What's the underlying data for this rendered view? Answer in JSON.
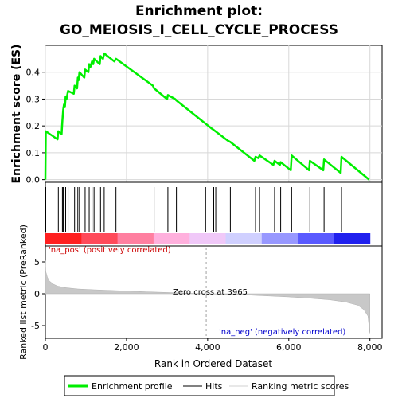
{
  "title_lines": [
    "Enrichment plot:",
    "GO_MEIOSIS_I_CELL_CYCLE_PROCESS"
  ],
  "chart_data": [
    {
      "type": "line",
      "panel": "enrichment",
      "ylabel": "Enrichment score (ES)",
      "ylim": [
        -0.01,
        0.5
      ],
      "xlim": [
        0,
        8300
      ],
      "y_ticks": [
        0.0,
        0.1,
        0.2,
        0.3,
        0.4
      ],
      "y_tick_labels": [
        "0.0",
        "0.1",
        "0.2",
        "0.3",
        "0.4"
      ],
      "grid": true,
      "series": [
        {
          "name": "Enrichment profile",
          "color": "#00ee00",
          "points": [
            [
              0,
              0
            ],
            [
              10,
              0.18
            ],
            [
              300,
              0.15
            ],
            [
              320,
              0.18
            ],
            [
              400,
              0.17
            ],
            [
              420,
              0.22
            ],
            [
              440,
              0.26
            ],
            [
              460,
              0.28
            ],
            [
              480,
              0.27
            ],
            [
              500,
              0.31
            ],
            [
              520,
              0.3
            ],
            [
              560,
              0.33
            ],
            [
              700,
              0.32
            ],
            [
              720,
              0.35
            ],
            [
              780,
              0.34
            ],
            [
              800,
              0.38
            ],
            [
              820,
              0.37
            ],
            [
              840,
              0.4
            ],
            [
              960,
              0.38
            ],
            [
              980,
              0.41
            ],
            [
              1060,
              0.4
            ],
            [
              1080,
              0.43
            ],
            [
              1110,
              0.42
            ],
            [
              1150,
              0.44
            ],
            [
              1180,
              0.43
            ],
            [
              1200,
              0.45
            ],
            [
              1340,
              0.43
            ],
            [
              1360,
              0.46
            ],
            [
              1420,
              0.45
            ],
            [
              1450,
              0.47
            ],
            [
              1700,
              0.44
            ],
            [
              1740,
              0.45
            ],
            [
              2650,
              0.35
            ],
            [
              2680,
              0.34
            ],
            [
              3000,
              0.3
            ],
            [
              3020,
              0.315
            ],
            [
              3200,
              0.3
            ],
            [
              3230,
              0.295
            ],
            [
              4100,
              0.19
            ],
            [
              4150,
              0.185
            ],
            [
              4500,
              0.145
            ],
            [
              4560,
              0.14
            ],
            [
              5150,
              0.07
            ],
            [
              5180,
              0.085
            ],
            [
              5250,
              0.08
            ],
            [
              5280,
              0.09
            ],
            [
              5620,
              0.055
            ],
            [
              5650,
              0.07
            ],
            [
              5780,
              0.055
            ],
            [
              5800,
              0.065
            ],
            [
              6050,
              0.035
            ],
            [
              6070,
              0.09
            ],
            [
              6500,
              0.035
            ],
            [
              6520,
              0.07
            ],
            [
              6850,
              0.035
            ],
            [
              6870,
              0.075
            ],
            [
              7280,
              0.025
            ],
            [
              7300,
              0.085
            ],
            [
              7980,
              0.0
            ]
          ]
        }
      ]
    },
    {
      "type": "hits",
      "panel": "hits",
      "series": [
        {
          "name": "Hits",
          "color": "#000000",
          "x": [
            10,
            320,
            420,
            440,
            460,
            500,
            560,
            720,
            800,
            840,
            980,
            1080,
            1150,
            1200,
            1360,
            1450,
            1740,
            2680,
            3020,
            3230,
            3950,
            4150,
            4200,
            4560,
            5180,
            5280,
            5650,
            5800,
            6070,
            6520,
            6870,
            7300
          ]
        }
      ]
    },
    {
      "type": "heatmap",
      "panel": "ranking-colorbar",
      "label_positive": "'na_pos' (positively correlated)",
      "label_negative": "'na_neg' (negatively correlated)",
      "colors": [
        "#ff2020",
        "#ff4a5a",
        "#ff7fa0",
        "#ffb0dd",
        "#f0c8f8",
        "#d0d0ff",
        "#9898ff",
        "#5a5aff",
        "#2020ee"
      ]
    },
    {
      "type": "area",
      "panel": "ranking-metric",
      "xlabel": "Rank in Ordered Dataset",
      "ylabel": "Ranked list metric (PreRanked)",
      "ylim": [
        -7,
        7.5
      ],
      "y_ticks": [
        -5,
        0,
        5
      ],
      "y_tick_labels": [
        "-5",
        "0",
        "5"
      ],
      "x_ticks": [
        0,
        2000,
        4000,
        6000,
        8000
      ],
      "x_tick_labels": [
        "0",
        "2,000",
        "4,000",
        "6,000",
        "8,000"
      ],
      "zero_cross": 3965,
      "zero_cross_label": "Zero cross at 3965",
      "series": [
        {
          "name": "Ranking metric scores",
          "color": "#c8c8c8",
          "points": [
            [
              0,
              5.2
            ],
            [
              10,
              3.5
            ],
            [
              50,
              2.6
            ],
            [
              100,
              2.0
            ],
            [
              200,
              1.5
            ],
            [
              300,
              1.2
            ],
            [
              500,
              0.95
            ],
            [
              800,
              0.75
            ],
            [
              1200,
              0.62
            ],
            [
              1600,
              0.52
            ],
            [
              2000,
              0.42
            ],
            [
              2500,
              0.3
            ],
            [
              3000,
              0.2
            ],
            [
              3500,
              0.08
            ],
            [
              3965,
              0
            ],
            [
              4500,
              -0.1
            ],
            [
              5000,
              -0.2
            ],
            [
              5500,
              -0.35
            ],
            [
              6000,
              -0.5
            ],
            [
              6500,
              -0.7
            ],
            [
              7000,
              -0.95
            ],
            [
              7400,
              -1.3
            ],
            [
              7700,
              -1.8
            ],
            [
              7850,
              -2.5
            ],
            [
              7950,
              -3.5
            ],
            [
              7990,
              -5.8
            ],
            [
              8000,
              -6.2
            ]
          ]
        }
      ]
    }
  ],
  "legend": {
    "items": [
      {
        "label": "Enrichment profile",
        "color": "#00ee00",
        "style": "thick"
      },
      {
        "label": "Hits",
        "color": "#808080",
        "style": "medium"
      },
      {
        "label": "Ranking metric scores",
        "color": "#d0d0d0",
        "style": "thin"
      }
    ]
  }
}
